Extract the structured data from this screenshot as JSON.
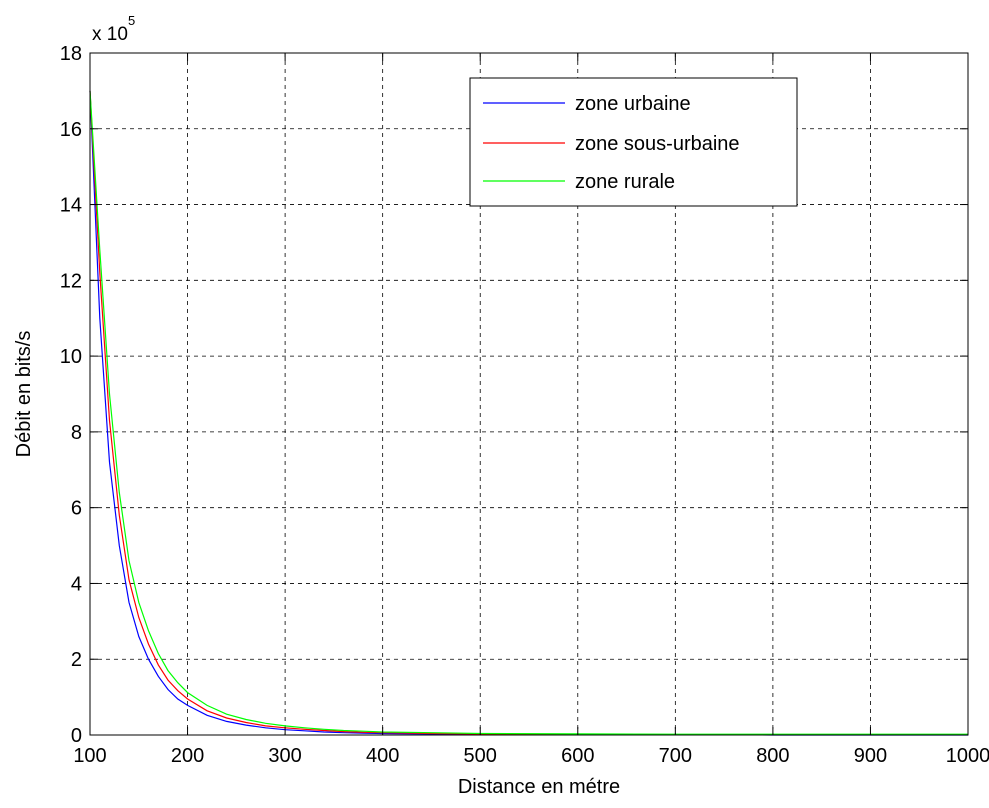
{
  "chart_data": {
    "type": "line",
    "title": "",
    "xlabel": "Distance en métre",
    "ylabel": "Débit en bits/s",
    "y_multiplier_label": "x 10",
    "y_multiplier_exponent": "5",
    "xlim": [
      100,
      1000
    ],
    "ylim": [
      0,
      18
    ],
    "x_ticks": [
      100,
      200,
      300,
      400,
      500,
      600,
      700,
      800,
      900,
      1000
    ],
    "y_ticks": [
      0,
      2,
      4,
      6,
      8,
      10,
      12,
      14,
      16,
      18
    ],
    "grid": true,
    "legend_position": "top-right",
    "x": [
      100,
      110,
      120,
      130,
      140,
      150,
      160,
      170,
      180,
      190,
      200,
      220,
      240,
      260,
      280,
      300,
      320,
      340,
      360,
      380,
      400,
      450,
      500,
      600,
      700,
      800,
      900,
      1000
    ],
    "series": [
      {
        "name": "zone urbaine",
        "color": "#0000ff",
        "values": [
          17.0,
          11.0,
          7.2,
          5.0,
          3.5,
          2.6,
          2.0,
          1.55,
          1.2,
          0.95,
          0.78,
          0.52,
          0.36,
          0.26,
          0.19,
          0.14,
          0.11,
          0.08,
          0.06,
          0.05,
          0.04,
          0.03,
          0.02,
          0.01,
          0.01,
          0.0,
          0.0,
          0.0
        ]
      },
      {
        "name": "zone sous-urbaine",
        "color": "#ff0000",
        "values": [
          17.0,
          12.2,
          8.3,
          5.8,
          4.1,
          3.1,
          2.4,
          1.85,
          1.45,
          1.17,
          0.95,
          0.64,
          0.45,
          0.33,
          0.24,
          0.19,
          0.15,
          0.12,
          0.09,
          0.07,
          0.06,
          0.04,
          0.03,
          0.02,
          0.01,
          0.01,
          0.01,
          0.01
        ]
      },
      {
        "name": "zone rurale",
        "color": "#00ff00",
        "values": [
          17.0,
          12.8,
          9.0,
          6.4,
          4.6,
          3.5,
          2.75,
          2.15,
          1.7,
          1.38,
          1.12,
          0.78,
          0.55,
          0.41,
          0.31,
          0.24,
          0.19,
          0.15,
          0.12,
          0.1,
          0.08,
          0.06,
          0.04,
          0.03,
          0.02,
          0.02,
          0.02,
          0.02
        ]
      }
    ]
  }
}
